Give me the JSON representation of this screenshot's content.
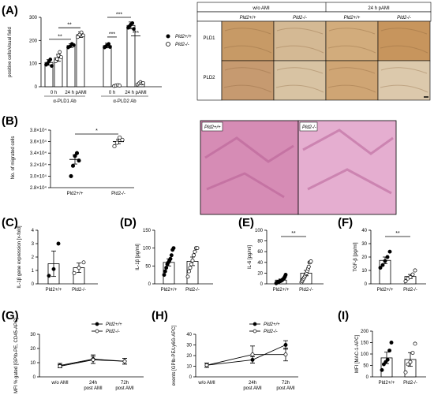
{
  "panel_labels": {
    "A": "(A)",
    "B": "(B)",
    "C": "(C)",
    "D": "(D)",
    "E": "(E)",
    "F": "(F)",
    "G": "(G)",
    "H": "(H)",
    "I": "(I)"
  },
  "legend_A": {
    "entries": [
      "Pld2+/+",
      "Pld2-/-"
    ]
  },
  "micro_A": {
    "group_headers": [
      "w/o AMI",
      "24 h pAMI"
    ],
    "col_headers": [
      "Pld2+/+",
      "Pld2-/-",
      "Pld2+/+",
      "Pld2-/-"
    ],
    "row_headers": [
      "PLD1",
      "PLD2"
    ],
    "colors": [
      "#c79a66",
      "#d4b994",
      "#d2ac7c",
      "#c7955d",
      "#c69a70",
      "#d8c3a3",
      "#cfa574",
      "#dcc9ac"
    ]
  },
  "histo_B": {
    "labels": [
      "Pld2+/+",
      "Pld2-/-"
    ],
    "colors": [
      "#d68cb5",
      "#e5aed0"
    ]
  },
  "chart_data": [
    {
      "id": "A",
      "type": "bar",
      "ylabel": "positive cells/visual field",
      "ylim": [
        0,
        300
      ],
      "yticks": [
        "0",
        "100",
        "200",
        "300"
      ],
      "group_labels": [
        "0 h",
        "24 h pAMI",
        "0 h",
        "24 h pAMI"
      ],
      "antibody_labels": [
        "α-PLD1 Ab",
        "α-PLD2 Ab"
      ],
      "categories": [
        "PLD1 0 h",
        "PLD1 24 h pAMI",
        "PLD2 0 h",
        "PLD2 24 h pAMI"
      ],
      "series": [
        {
          "name": "Pld2+/+",
          "values": [
            105,
            178,
            178,
            265
          ],
          "errors": [
            12,
            8,
            10,
            15
          ],
          "points": [
            [
              95,
              100,
              110,
              118,
              90
            ],
            [
              170,
              175,
              185,
              180
            ],
            [
              170,
              175,
              180,
              185,
              172
            ],
            [
              255,
              262,
              270,
              275,
              250
            ]
          ]
        },
        {
          "name": "Pld2-/-",
          "values": [
            125,
            225,
            5,
            15
          ],
          "errors": [
            15,
            12,
            2,
            3
          ],
          "points": [
            [
              110,
              120,
              135,
              150,
              128
            ],
            [
              215,
              225,
              235,
              222
            ],
            [
              3,
              5,
              7,
              5
            ],
            [
              10,
              15,
              20,
              14,
              16
            ]
          ]
        }
      ],
      "significance": [
        "**",
        "**",
        "***",
        "***",
        "***"
      ]
    },
    {
      "id": "B",
      "type": "scatter",
      "ylabel": "No. of migrated cells",
      "ylim": [
        28000,
        38000
      ],
      "yticks": [
        "2.8×10⁴",
        "3.0×10⁴",
        "3.2×10⁴",
        "3.4×10⁴",
        "3.6×10⁴",
        "3.8×10⁴"
      ],
      "categories": [
        "Pld2+/+",
        "Pld2-/-"
      ],
      "means": [
        32900,
        36000
      ],
      "errors": [
        800,
        400
      ],
      "points": [
        [
          30000,
          31800,
          33500,
          34000,
          32700
        ],
        [
          35200,
          35800,
          36700,
          36300
        ]
      ],
      "significance": "*"
    },
    {
      "id": "C",
      "type": "bar",
      "ylabel": "IL-1β gene expression [x-fold]",
      "ylim": [
        0,
        4
      ],
      "yticks": [
        "0",
        "1",
        "2",
        "3",
        "4"
      ],
      "categories": [
        "Pld2+/+",
        "Pld2-/-"
      ],
      "values": [
        1.5,
        1.2
      ],
      "errors": [
        0.95,
        0.35
      ],
      "points": [
        [
          0.6,
          1.1,
          3.0
        ],
        [
          0.8,
          1.2,
          1.6
        ]
      ]
    },
    {
      "id": "D",
      "type": "bar",
      "ylabel": "IL-1β [pg/ml]",
      "ylim": [
        0,
        150
      ],
      "yticks": [
        "0",
        "50",
        "100",
        "150"
      ],
      "categories": [
        "Pld2+/+",
        "Pld2-/-"
      ],
      "values": [
        60,
        63
      ],
      "errors": [
        10,
        12
      ],
      "points": [
        [
          25,
          35,
          45,
          55,
          60,
          65,
          70,
          80,
          95,
          100
        ],
        [
          20,
          35,
          45,
          55,
          65,
          80,
          90,
          100,
          100
        ]
      ]
    },
    {
      "id": "E",
      "type": "bar",
      "ylabel": "IL-6 [pg/ml]",
      "ylim": [
        0,
        100
      ],
      "yticks": [
        "0",
        "20",
        "40",
        "60",
        "80",
        "100"
      ],
      "categories": [
        "Pld2+/+",
        "Pld2-/-"
      ],
      "values": [
        7,
        20
      ],
      "errors": [
        2,
        5
      ],
      "points": [
        [
          1,
          2,
          3,
          3,
          4,
          4,
          5,
          5,
          6,
          6,
          7,
          8,
          9,
          10,
          12,
          14,
          17
        ],
        [
          3,
          5,
          8,
          10,
          12,
          15,
          18,
          20,
          24,
          28,
          32,
          40,
          40,
          42
        ]
      ],
      "significance": "**"
    },
    {
      "id": "F",
      "type": "bar",
      "ylabel": "TGF-β [pg/ml]",
      "ylim": [
        0,
        40
      ],
      "yticks": [
        "0",
        "10",
        "20",
        "30",
        "40"
      ],
      "categories": [
        "Pld2+/+",
        "Pld2-/-"
      ],
      "values": [
        17.5,
        5.5
      ],
      "errors": [
        2.5,
        1.5
      ],
      "points": [
        [
          12,
          14,
          17,
          20,
          24
        ],
        [
          2,
          4,
          5,
          7,
          10
        ]
      ],
      "significance": "**"
    },
    {
      "id": "G",
      "type": "line",
      "ylabel": "MFI % gated [GPIb-PE, CD45-APC]",
      "ylim": [
        0,
        30
      ],
      "yticks": [
        "0",
        "10",
        "20",
        "30"
      ],
      "categories": [
        "w/o AMI",
        "24h post AMI",
        "72h post AMI"
      ],
      "series": [
        {
          "name": "Pld2+/+",
          "values": [
            8,
            12.5,
            11
          ],
          "errors": [
            1.5,
            3,
            2
          ]
        },
        {
          "name": "Pld2-/-",
          "values": [
            7.5,
            12,
            11
          ],
          "errors": [
            1,
            2.5,
            2
          ]
        }
      ]
    },
    {
      "id": "H",
      "type": "line",
      "ylabel": "events [GPIb-PE/Ly6G-APC]",
      "ylim": [
        0,
        40
      ],
      "yticks": [
        "0",
        "10",
        "20",
        "30",
        "40"
      ],
      "categories": [
        "w/o AMI",
        "24h post AMI",
        "72h post AMI"
      ],
      "series": [
        {
          "name": "Pld2+/+",
          "values": [
            11,
            16,
            30
          ],
          "errors": [
            2,
            3,
            4
          ]
        },
        {
          "name": "Pld2-/-",
          "values": [
            11,
            21,
            21
          ],
          "errors": [
            2,
            8,
            6
          ]
        }
      ]
    },
    {
      "id": "I",
      "type": "bar",
      "ylabel": "MFI [MAC-1-APC]",
      "ylim": [
        0,
        200
      ],
      "yticks": [
        "0",
        "50",
        "100",
        "150",
        "200"
      ],
      "categories": [
        "Pld2+/+",
        "Pld2-/-"
      ],
      "values": [
        83,
        76
      ],
      "errors": [
        25,
        30
      ],
      "points": [
        [
          30,
          55,
          65,
          75,
          115,
          150
        ],
        [
          20,
          55,
          65,
          105,
          145
        ]
      ]
    }
  ]
}
